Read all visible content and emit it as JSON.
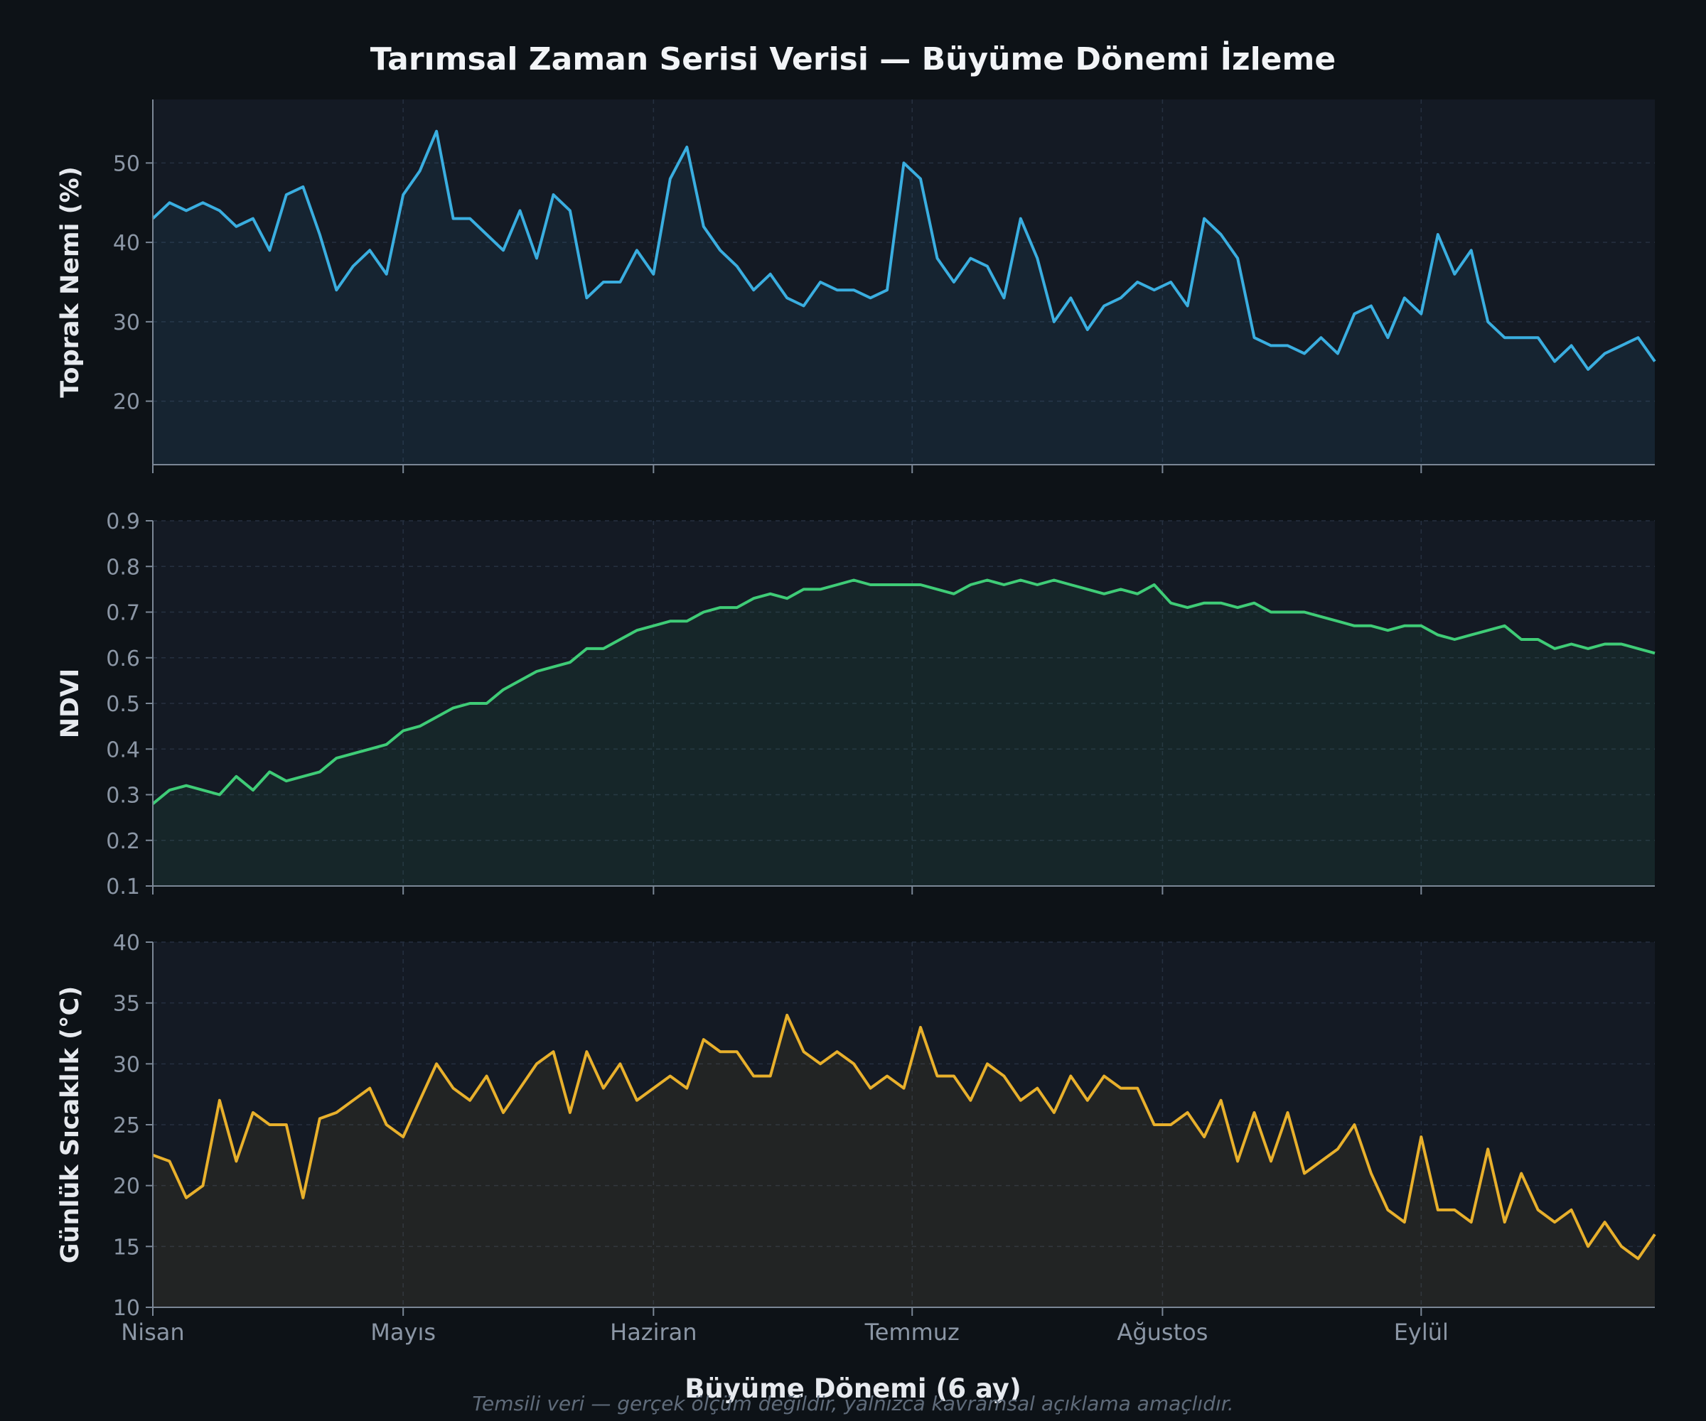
{
  "colors": {
    "background": "#0d1217",
    "panel": "#141a24",
    "grid": "#263040",
    "axis": "#7b8796",
    "tick_text": "#8b96a5",
    "title_text": "#f2f4f7",
    "label_text": "#e6e9ee",
    "note_text": "#5f6b7a"
  },
  "figure": {
    "title": "Tarımsal Zaman Serisi Verisi — Büyüme Dönemi İzleme",
    "xlabel": "Büyüme Dönemi (6 ay)",
    "note": "Temsili veri — gerçek ölçüm değildir, yalnızca kavramsal açıklama amaçlıdır."
  },
  "chart_data": [
    {
      "type": "area",
      "ylabel": "Toprak Nemi (%)",
      "color": "#3aaee0",
      "ylim": [
        12,
        58
      ],
      "yticks": [
        20,
        30,
        40,
        50
      ],
      "xlim": [
        0,
        180
      ],
      "xticks": [
        {
          "label": "Nisan",
          "x": 0
        },
        {
          "label": "Mayıs",
          "x": 30
        },
        {
          "label": "Haziran",
          "x": 60
        },
        {
          "label": "Temmuz",
          "x": 91
        },
        {
          "label": "Ağustos",
          "x": 121
        },
        {
          "label": "Eylül",
          "x": 152
        }
      ],
      "grid": true,
      "x": [
        0,
        2,
        4,
        6,
        8,
        10,
        12,
        14,
        16,
        18,
        20,
        22,
        24,
        26,
        28,
        30,
        32,
        34,
        36,
        38,
        40,
        42,
        44,
        46,
        48,
        50,
        52,
        54,
        56,
        58,
        60,
        62,
        64,
        66,
        68,
        70,
        72,
        74,
        76,
        78,
        80,
        82,
        84,
        86,
        88,
        90,
        92,
        94,
        96,
        98,
        100,
        102,
        104,
        106,
        108,
        110,
        112,
        114,
        116,
        118,
        120,
        122,
        124,
        126,
        128,
        130,
        132,
        134,
        136,
        138,
        140,
        142,
        144,
        146,
        148,
        150,
        152,
        154,
        156,
        158,
        160,
        162,
        164,
        166,
        168,
        170,
        172,
        174,
        176,
        178,
        180
      ],
      "y": [
        43,
        45,
        44,
        45,
        44,
        42,
        43,
        39,
        46,
        47,
        41,
        34,
        37,
        39,
        36,
        46,
        49,
        54,
        43,
        43,
        41,
        39,
        44,
        38,
        46,
        44,
        33,
        35,
        35,
        39,
        36,
        48,
        52,
        42,
        39,
        37,
        34,
        36,
        33,
        32,
        35,
        34,
        34,
        33,
        34,
        50,
        48,
        38,
        35,
        38,
        37,
        33,
        43,
        38,
        30,
        33,
        29,
        32,
        33,
        35,
        34,
        35,
        32,
        43,
        41,
        38,
        28,
        27,
        27,
        26,
        28,
        26,
        31,
        32,
        28,
        33,
        31,
        41,
        36,
        39,
        30,
        28,
        28,
        28,
        25,
        27,
        24,
        26,
        27,
        28,
        25
      ]
    },
    {
      "type": "area",
      "ylabel": "NDVI",
      "color": "#3fcc77",
      "ylim": [
        0.1,
        0.9
      ],
      "yticks": [
        0.1,
        0.2,
        0.3,
        0.4,
        0.5,
        0.6,
        0.7,
        0.8,
        0.9
      ],
      "xlim": [
        0,
        180
      ],
      "xticks": [
        {
          "label": "Nisan",
          "x": 0
        },
        {
          "label": "Mayıs",
          "x": 30
        },
        {
          "label": "Haziran",
          "x": 60
        },
        {
          "label": "Temmuz",
          "x": 91
        },
        {
          "label": "Ağustos",
          "x": 121
        },
        {
          "label": "Eylül",
          "x": 152
        }
      ],
      "grid": true,
      "x": [
        0,
        2,
        4,
        6,
        8,
        10,
        12,
        14,
        16,
        18,
        20,
        22,
        24,
        26,
        28,
        30,
        32,
        34,
        36,
        38,
        40,
        42,
        44,
        46,
        48,
        50,
        52,
        54,
        56,
        58,
        60,
        62,
        64,
        66,
        68,
        70,
        72,
        74,
        76,
        78,
        80,
        82,
        84,
        86,
        88,
        90,
        92,
        94,
        96,
        98,
        100,
        102,
        104,
        106,
        108,
        110,
        112,
        114,
        116,
        118,
        120,
        122,
        124,
        126,
        128,
        130,
        132,
        134,
        136,
        138,
        140,
        142,
        144,
        146,
        148,
        150,
        152,
        154,
        156,
        158,
        160,
        162,
        164,
        166,
        168,
        170,
        172,
        174,
        176,
        178,
        180
      ],
      "y": [
        0.28,
        0.31,
        0.32,
        0.31,
        0.3,
        0.34,
        0.31,
        0.35,
        0.33,
        0.34,
        0.35,
        0.38,
        0.39,
        0.4,
        0.41,
        0.44,
        0.45,
        0.47,
        0.49,
        0.5,
        0.5,
        0.53,
        0.55,
        0.57,
        0.58,
        0.59,
        0.62,
        0.62,
        0.64,
        0.66,
        0.67,
        0.68,
        0.68,
        0.7,
        0.71,
        0.71,
        0.73,
        0.74,
        0.73,
        0.75,
        0.75,
        0.76,
        0.77,
        0.76,
        0.76,
        0.76,
        0.76,
        0.75,
        0.74,
        0.76,
        0.77,
        0.76,
        0.77,
        0.76,
        0.77,
        0.76,
        0.75,
        0.74,
        0.75,
        0.74,
        0.76,
        0.72,
        0.71,
        0.72,
        0.72,
        0.71,
        0.72,
        0.7,
        0.7,
        0.7,
        0.69,
        0.68,
        0.67,
        0.67,
        0.66,
        0.67,
        0.67,
        0.65,
        0.64,
        0.65,
        0.66,
        0.67,
        0.64,
        0.64,
        0.62,
        0.63,
        0.62,
        0.63,
        0.63,
        0.62,
        0.61
      ]
    },
    {
      "type": "area",
      "ylabel": "Günlük Sıcaklık (°C)",
      "color": "#e8b02c",
      "ylim": [
        10,
        40
      ],
      "yticks": [
        10,
        15,
        20,
        25,
        30,
        35,
        40
      ],
      "xlim": [
        0,
        180
      ],
      "xticks": [
        {
          "label": "Nisan",
          "x": 0
        },
        {
          "label": "Mayıs",
          "x": 30
        },
        {
          "label": "Haziran",
          "x": 60
        },
        {
          "label": "Temmuz",
          "x": 91
        },
        {
          "label": "Ağustos",
          "x": 121
        },
        {
          "label": "Eylül",
          "x": 152
        }
      ],
      "grid": true,
      "x": [
        0,
        2,
        4,
        6,
        8,
        10,
        12,
        14,
        16,
        18,
        20,
        22,
        24,
        26,
        28,
        30,
        32,
        34,
        36,
        38,
        40,
        42,
        44,
        46,
        48,
        50,
        52,
        54,
        56,
        58,
        60,
        62,
        64,
        66,
        68,
        70,
        72,
        74,
        76,
        78,
        80,
        82,
        84,
        86,
        88,
        90,
        92,
        94,
        96,
        98,
        100,
        102,
        104,
        106,
        108,
        110,
        112,
        114,
        116,
        118,
        120,
        122,
        124,
        126,
        128,
        130,
        132,
        134,
        136,
        138,
        140,
        142,
        144,
        146,
        148,
        150,
        152,
        154,
        156,
        158,
        160,
        162,
        164,
        166,
        168,
        170,
        172,
        174,
        176,
        178,
        180
      ],
      "y": [
        22.5,
        22,
        19,
        20,
        27,
        22,
        26,
        25,
        25,
        19,
        25.5,
        26,
        27,
        28,
        25,
        24,
        27,
        30,
        28,
        27,
        29,
        26,
        28,
        30,
        31,
        26,
        31,
        28,
        30,
        27,
        28,
        29,
        28,
        32,
        31,
        31,
        29,
        29,
        34,
        31,
        30,
        31,
        30,
        28,
        29,
        28,
        33,
        29,
        29,
        27,
        30,
        29,
        27,
        28,
        26,
        29,
        27,
        29,
        28,
        28,
        25,
        25,
        26,
        24,
        27,
        22,
        26,
        22,
        26,
        21,
        22,
        23,
        25,
        21,
        18,
        17,
        24,
        18,
        18,
        17,
        23,
        17,
        21,
        18,
        17,
        18,
        15,
        17,
        15,
        14,
        16
      ]
    }
  ]
}
